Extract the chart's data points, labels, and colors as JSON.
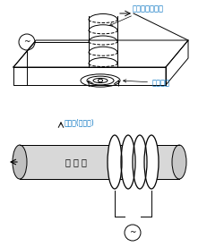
{
  "bg_color": "#ffffff",
  "line_color": "#000000",
  "text_color_blue": "#0070c0",
  "label_probe": "プローブコイル",
  "label_eddy": "うず電流",
  "label_specimen_healthy": "試験体(健全部)",
  "label_specimen": "試 験 体",
  "fig_width": 2.31,
  "fig_height": 2.76,
  "dpi": 100
}
